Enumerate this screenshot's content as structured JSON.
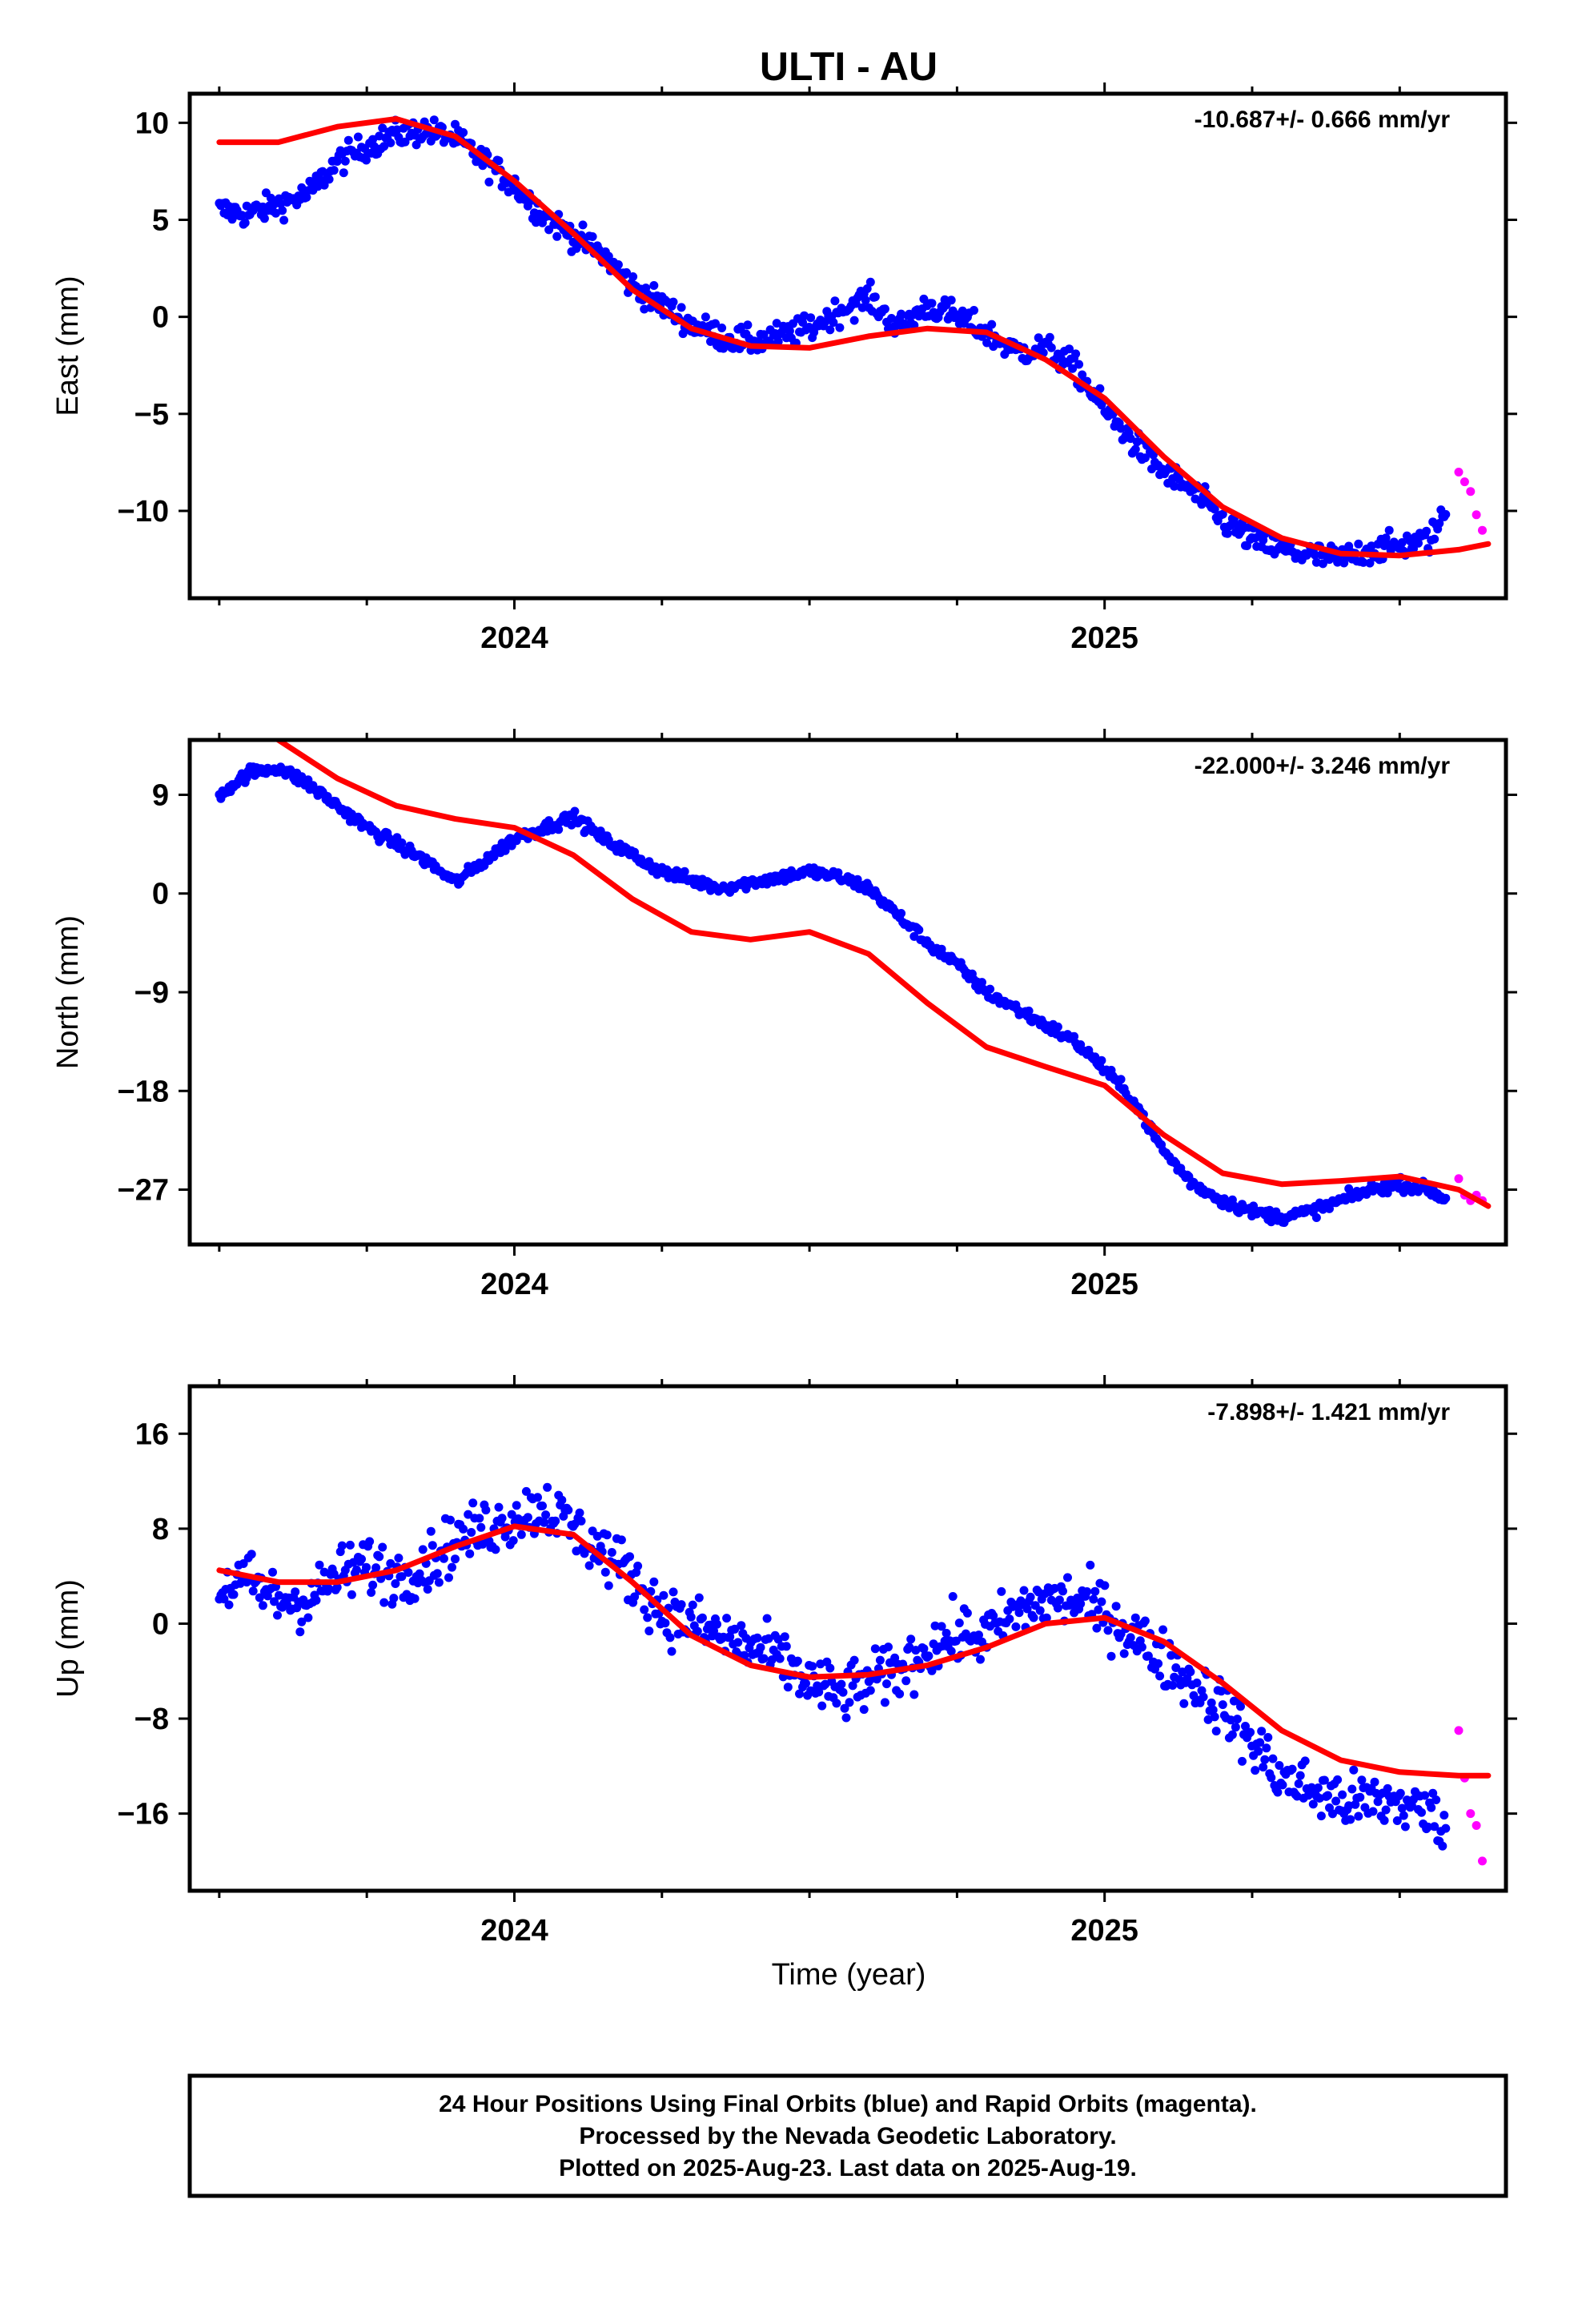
{
  "title": "ULTI - AU",
  "x_axis_label": "Time (year)",
  "footer": {
    "line1": "24 Hour Positions Using Final Orbits (blue) and Rapid Orbits (magenta).",
    "line2": "Processed by the Nevada Geodetic Laboratory.",
    "line3": "Plotted on 2025-Aug-23. Last data on 2025-Aug-19."
  },
  "colors": {
    "final_orbits": "#0000ff",
    "rapid_orbits": "#ff00ff",
    "model_fit": "#ff0000",
    "frame": "#000000"
  },
  "chart_data": [
    {
      "type": "scatter",
      "component": "east",
      "ylabel": "East (mm)",
      "rate_label": "-10.687+/- 0.666 mm/yr",
      "xlim": [
        2023.45,
        2025.68
      ],
      "ylim": [
        -14.5,
        11.5
      ],
      "x_ticks": [
        2024,
        2025
      ],
      "x_tick_labels": [
        "2024",
        "2025"
      ],
      "y_ticks": [
        10,
        5,
        0,
        -5,
        -10
      ],
      "y_tick_labels": [
        "10",
        "5",
        "0",
        "−5",
        "−10"
      ],
      "trend_samples": [
        [
          2023.5,
          9.0
        ],
        [
          2023.6,
          9.0
        ],
        [
          2023.7,
          9.8
        ],
        [
          2023.8,
          10.2
        ],
        [
          2023.9,
          9.3
        ],
        [
          2024.0,
          7.0
        ],
        [
          2024.1,
          4.3
        ],
        [
          2024.2,
          1.4
        ],
        [
          2024.3,
          -0.6
        ],
        [
          2024.4,
          -1.5
        ],
        [
          2024.5,
          -1.6
        ],
        [
          2024.6,
          -1.0
        ],
        [
          2024.7,
          -0.6
        ],
        [
          2024.8,
          -0.8
        ],
        [
          2024.9,
          -2.2
        ],
        [
          2025.0,
          -4.2
        ],
        [
          2025.1,
          -7.2
        ],
        [
          2025.2,
          -9.8
        ],
        [
          2025.3,
          -11.4
        ],
        [
          2025.4,
          -12.2
        ],
        [
          2025.5,
          -12.3
        ],
        [
          2025.6,
          -12.0
        ],
        [
          2025.65,
          -11.7
        ]
      ],
      "final_samples": [
        [
          2023.5,
          5.5
        ],
        [
          2023.55,
          5.3
        ],
        [
          2023.6,
          5.8
        ],
        [
          2023.65,
          6.3
        ],
        [
          2023.7,
          8.0
        ],
        [
          2023.75,
          8.8
        ],
        [
          2023.8,
          9.4
        ],
        [
          2023.85,
          9.6
        ],
        [
          2023.9,
          9.2
        ],
        [
          2023.95,
          8.0
        ],
        [
          2024.0,
          6.8
        ],
        [
          2024.05,
          5.2
        ],
        [
          2024.1,
          4.2
        ],
        [
          2024.15,
          3.2
        ],
        [
          2024.2,
          1.6
        ],
        [
          2024.25,
          0.6
        ],
        [
          2024.3,
          -0.4
        ],
        [
          2024.35,
          -1.0
        ],
        [
          2024.4,
          -1.3
        ],
        [
          2024.45,
          -1.0
        ],
        [
          2024.5,
          -0.6
        ],
        [
          2024.55,
          0.3
        ],
        [
          2024.6,
          1.0
        ],
        [
          2024.65,
          -0.6
        ],
        [
          2024.7,
          0.6
        ],
        [
          2024.75,
          0.0
        ],
        [
          2024.8,
          -0.8
        ],
        [
          2024.85,
          -1.8
        ],
        [
          2024.9,
          -1.6
        ],
        [
          2024.95,
          -2.6
        ],
        [
          2025.0,
          -4.8
        ],
        [
          2025.05,
          -6.5
        ],
        [
          2025.1,
          -8.0
        ],
        [
          2025.15,
          -9.0
        ],
        [
          2025.2,
          -10.5
        ],
        [
          2025.25,
          -11.5
        ],
        [
          2025.3,
          -12.0
        ],
        [
          2025.35,
          -12.3
        ],
        [
          2025.4,
          -12.5
        ],
        [
          2025.45,
          -12.0
        ],
        [
          2025.5,
          -11.8
        ],
        [
          2025.55,
          -11.5
        ],
        [
          2025.58,
          -10.0
        ]
      ],
      "rapid_samples": [
        [
          2025.6,
          -8.0
        ],
        [
          2025.61,
          -8.5
        ],
        [
          2025.62,
          -9.0
        ],
        [
          2025.63,
          -10.2
        ],
        [
          2025.64,
          -11.0
        ]
      ],
      "scatter": 1.0
    },
    {
      "type": "scatter",
      "component": "north",
      "ylabel": "North (mm)",
      "rate_label": "-22.000+/- 3.246 mm/yr",
      "xlim": [
        2023.45,
        2025.68
      ],
      "ylim": [
        -32,
        14
      ],
      "x_ticks": [
        2024,
        2025
      ],
      "x_tick_labels": [
        "2024",
        "2025"
      ],
      "y_ticks": [
        9,
        0,
        -9,
        -18,
        -27
      ],
      "y_tick_labels": [
        "9",
        "0",
        "−9",
        "−18",
        "−27"
      ],
      "trend_samples": [
        [
          2023.6,
          14.0
        ],
        [
          2023.7,
          10.5
        ],
        [
          2023.8,
          8.0
        ],
        [
          2023.9,
          6.8
        ],
        [
          2024.0,
          6.0
        ],
        [
          2024.1,
          3.5
        ],
        [
          2024.2,
          -0.5
        ],
        [
          2024.3,
          -3.5
        ],
        [
          2024.4,
          -4.2
        ],
        [
          2024.5,
          -3.5
        ],
        [
          2024.6,
          -5.5
        ],
        [
          2024.7,
          -10.0
        ],
        [
          2024.8,
          -14.0
        ],
        [
          2024.9,
          -15.8
        ],
        [
          2025.0,
          -17.5
        ],
        [
          2025.1,
          -22.0
        ],
        [
          2025.2,
          -25.5
        ],
        [
          2025.3,
          -26.5
        ],
        [
          2025.4,
          -26.2
        ],
        [
          2025.5,
          -25.8
        ],
        [
          2025.6,
          -27.0
        ],
        [
          2025.65,
          -28.5
        ]
      ],
      "final_samples": [
        [
          2023.5,
          9.0
        ],
        [
          2023.55,
          11.0
        ],
        [
          2023.6,
          11.5
        ],
        [
          2023.65,
          10.0
        ],
        [
          2023.7,
          8.0
        ],
        [
          2023.75,
          6.0
        ],
        [
          2023.8,
          4.5
        ],
        [
          2023.85,
          3.0
        ],
        [
          2023.9,
          1.0
        ],
        [
          2023.95,
          3.0
        ],
        [
          2024.0,
          5.0
        ],
        [
          2024.05,
          6.0
        ],
        [
          2024.1,
          7.0
        ],
        [
          2024.15,
          5.0
        ],
        [
          2024.2,
          3.5
        ],
        [
          2024.25,
          2.0
        ],
        [
          2024.3,
          1.2
        ],
        [
          2024.35,
          0.5
        ],
        [
          2024.4,
          1.0
        ],
        [
          2024.45,
          1.5
        ],
        [
          2024.5,
          2.0
        ],
        [
          2024.55,
          1.5
        ],
        [
          2024.6,
          0.5
        ],
        [
          2024.65,
          -2.0
        ],
        [
          2024.7,
          -4.5
        ],
        [
          2024.75,
          -6.5
        ],
        [
          2024.8,
          -9.0
        ],
        [
          2024.85,
          -10.5
        ],
        [
          2024.9,
          -12.0
        ],
        [
          2024.95,
          -13.5
        ],
        [
          2025.0,
          -16.0
        ],
        [
          2025.05,
          -19.0
        ],
        [
          2025.1,
          -23.5
        ],
        [
          2025.15,
          -26.5
        ],
        [
          2025.2,
          -28.0
        ],
        [
          2025.25,
          -29.0
        ],
        [
          2025.3,
          -29.5
        ],
        [
          2025.35,
          -29.0
        ],
        [
          2025.4,
          -28.0
        ],
        [
          2025.45,
          -27.0
        ],
        [
          2025.5,
          -26.5
        ],
        [
          2025.55,
          -27.0
        ],
        [
          2025.58,
          -28.0
        ]
      ],
      "rapid_samples": [
        [
          2025.6,
          -26.0
        ],
        [
          2025.61,
          -27.5
        ],
        [
          2025.62,
          -28.0
        ],
        [
          2025.63,
          -27.5
        ],
        [
          2025.64,
          -28.0
        ]
      ],
      "scatter": 0.8
    },
    {
      "type": "scatter",
      "component": "up",
      "ylabel": "Up (mm)",
      "rate_label": "-7.898+/- 1.421 mm/yr",
      "xlim": [
        2023.45,
        2025.68
      ],
      "ylim": [
        -22.5,
        20
      ],
      "x_ticks": [
        2024,
        2025
      ],
      "x_tick_labels": [
        "2024",
        "2025"
      ],
      "y_ticks": [
        16,
        8,
        0,
        -8,
        -16
      ],
      "y_tick_labels": [
        "16",
        "8",
        "0",
        "−8",
        "−16"
      ],
      "trend_samples": [
        [
          2023.5,
          4.5
        ],
        [
          2023.6,
          3.5
        ],
        [
          2023.7,
          3.5
        ],
        [
          2023.8,
          4.5
        ],
        [
          2023.9,
          6.5
        ],
        [
          2024.0,
          8.2
        ],
        [
          2024.1,
          7.5
        ],
        [
          2024.2,
          3.5
        ],
        [
          2024.3,
          -1.0
        ],
        [
          2024.4,
          -3.5
        ],
        [
          2024.5,
          -4.5
        ],
        [
          2024.6,
          -4.3
        ],
        [
          2024.7,
          -3.5
        ],
        [
          2024.8,
          -2.0
        ],
        [
          2024.9,
          0.0
        ],
        [
          2025.0,
          0.5
        ],
        [
          2025.1,
          -1.5
        ],
        [
          2025.2,
          -5.0
        ],
        [
          2025.3,
          -9.0
        ],
        [
          2025.4,
          -11.5
        ],
        [
          2025.5,
          -12.5
        ],
        [
          2025.6,
          -12.8
        ],
        [
          2025.65,
          -12.8
        ]
      ],
      "final_samples": [
        [
          2023.5,
          3.0
        ],
        [
          2023.55,
          3.5
        ],
        [
          2023.6,
          2.0
        ],
        [
          2023.65,
          2.0
        ],
        [
          2023.7,
          4.0
        ],
        [
          2023.75,
          5.0
        ],
        [
          2023.8,
          4.0
        ],
        [
          2023.85,
          5.0
        ],
        [
          2023.9,
          7.0
        ],
        [
          2023.95,
          8.0
        ],
        [
          2024.0,
          9.0
        ],
        [
          2024.05,
          10.0
        ],
        [
          2024.1,
          8.0
        ],
        [
          2024.15,
          6.0
        ],
        [
          2024.2,
          4.0
        ],
        [
          2024.25,
          1.0
        ],
        [
          2024.3,
          0.0
        ],
        [
          2024.35,
          -1.0
        ],
        [
          2024.4,
          -2.0
        ],
        [
          2024.45,
          -3.0
        ],
        [
          2024.5,
          -5.0
        ],
        [
          2024.55,
          -6.0
        ],
        [
          2024.6,
          -5.0
        ],
        [
          2024.65,
          -4.0
        ],
        [
          2024.7,
          -2.0
        ],
        [
          2024.75,
          -1.0
        ],
        [
          2024.8,
          -1.0
        ],
        [
          2024.85,
          1.0
        ],
        [
          2024.9,
          2.0
        ],
        [
          2024.95,
          2.0
        ],
        [
          2025.0,
          1.0
        ],
        [
          2025.05,
          -1.0
        ],
        [
          2025.1,
          -3.0
        ],
        [
          2025.15,
          -5.0
        ],
        [
          2025.2,
          -7.0
        ],
        [
          2025.25,
          -10.0
        ],
        [
          2025.3,
          -13.0
        ],
        [
          2025.35,
          -14.0
        ],
        [
          2025.4,
          -15.0
        ],
        [
          2025.45,
          -15.0
        ],
        [
          2025.5,
          -15.0
        ],
        [
          2025.55,
          -16.0
        ],
        [
          2025.58,
          -17.0
        ]
      ],
      "rapid_samples": [
        [
          2025.6,
          -9.0
        ],
        [
          2025.61,
          -13.0
        ],
        [
          2025.62,
          -16.0
        ],
        [
          2025.63,
          -17.0
        ],
        [
          2025.64,
          -20.0
        ]
      ],
      "scatter": 3.5
    }
  ]
}
